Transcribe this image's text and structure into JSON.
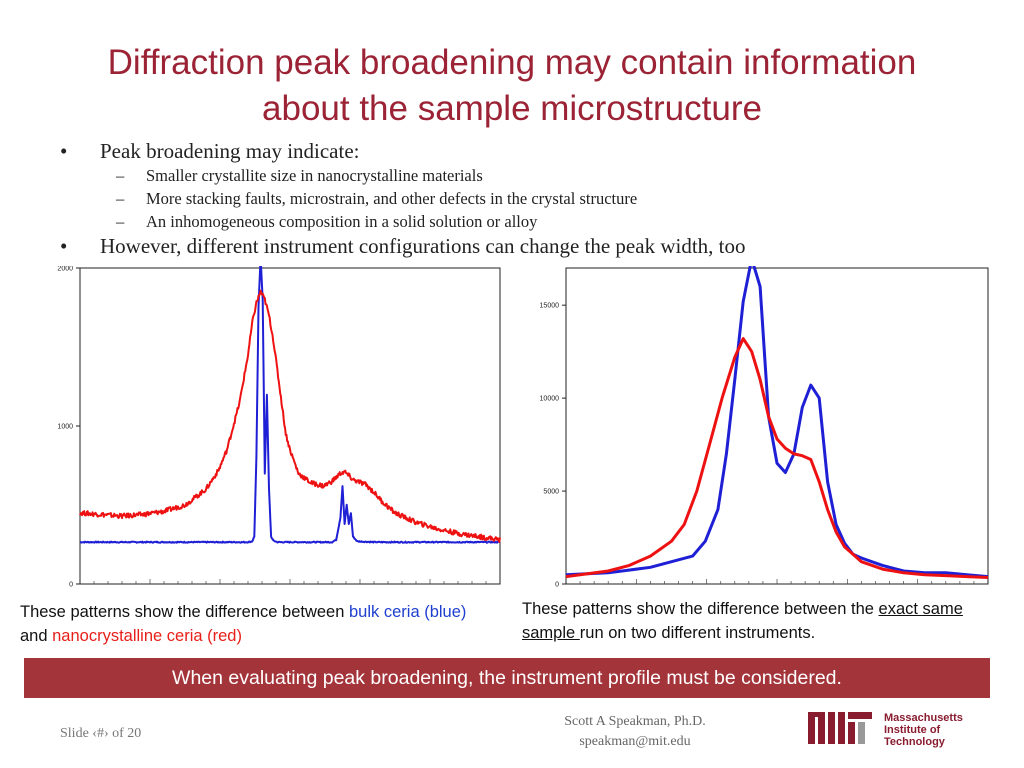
{
  "slide": {
    "title_line1": "Diffraction peak broadening may contain information",
    "title_line2": "about the sample microstructure",
    "bullets": [
      {
        "text": "Peak broadening may indicate:",
        "sub": [
          "Smaller crystallite size in nanocrystalline materials",
          "More stacking faults, microstrain, and other defects in the crystal structure",
          "An inhomogeneous composition in a solid solution or alloy"
        ]
      },
      {
        "text": "However, different instrument configurations can change the peak width, too"
      }
    ],
    "bullet_symbol": "•",
    "dash_symbol": "–",
    "caption_left": {
      "pre": "These patterns show the difference between ",
      "blue": "bulk ceria (blue)",
      "mid": " and ",
      "red": "nanocrystalline ceria (red)"
    },
    "caption_right": {
      "pre": "These patterns show the difference between the ",
      "underline": "exact same sample ",
      "post": "run on two different instruments."
    },
    "banner": "When evaluating peak broadening, the instrument profile must be considered.",
    "footer": {
      "slide_number": "Slide ‹#› of 20",
      "author_name": "Scott A Speakman, Ph.D.",
      "author_email": "speakman@mit.edu"
    },
    "logo": {
      "line1": "Massachusetts",
      "line2": "Institute of",
      "line3": "Technology",
      "mark": "MIT"
    }
  },
  "colors": {
    "title": "#9b2335",
    "banner": "#a3343a",
    "blue": "#1f1fd6",
    "red": "#ee1111"
  },
  "chart_data": [
    {
      "type": "line",
      "title": "",
      "xlabel": "",
      "ylabel": "",
      "ylim": [
        0,
        2000
      ],
      "yticks": [
        0,
        1000,
        2000
      ],
      "ytick_labels": [
        "0",
        "1000",
        "2000"
      ],
      "grid": false,
      "x_range": [
        0,
        100
      ],
      "series": [
        {
          "color": "#1f1fd6",
          "x": [
            0,
            40,
            41,
            41.5,
            42,
            42.5,
            43,
            43.5,
            44,
            44.5,
            45,
            45.5,
            46,
            47,
            48,
            50,
            60,
            61,
            62,
            62.5,
            63,
            63.5,
            64,
            64.5,
            65,
            66,
            70,
            80,
            90,
            100
          ],
          "y": [
            265,
            265,
            270,
            300,
            800,
            1750,
            2070,
            1800,
            700,
            1200,
            600,
            300,
            275,
            265,
            265,
            265,
            265,
            280,
            420,
            620,
            380,
            500,
            380,
            450,
            300,
            270,
            265,
            265,
            265,
            265
          ]
        },
        {
          "color": "#ee1111",
          "x": [
            0,
            5,
            10,
            15,
            20,
            25,
            30,
            33,
            35,
            38,
            40,
            41,
            42,
            43,
            44,
            45,
            46,
            47,
            48,
            49,
            50,
            52,
            55,
            58,
            60,
            62,
            63,
            65,
            68,
            70,
            72,
            75,
            80,
            85,
            90,
            95,
            100
          ],
          "y": [
            450,
            440,
            430,
            440,
            460,
            500,
            600,
            720,
            850,
            1150,
            1450,
            1650,
            1780,
            1850,
            1800,
            1700,
            1550,
            1350,
            1150,
            950,
            850,
            700,
            640,
            620,
            650,
            700,
            710,
            660,
            630,
            580,
            520,
            450,
            390,
            350,
            320,
            300,
            280
          ]
        }
      ]
    },
    {
      "type": "line",
      "title": "",
      "xlabel": "",
      "ylabel": "",
      "ylim": [
        0,
        17000
      ],
      "yticks": [
        0,
        5000,
        10000,
        15000
      ],
      "ytick_labels": [
        "0",
        "5000",
        "10000",
        "15000"
      ],
      "grid": false,
      "x_range": [
        0,
        100
      ],
      "series": [
        {
          "color": "#1f1fd6",
          "x": [
            0,
            10,
            20,
            25,
            30,
            33,
            36,
            38,
            40,
            42,
            44,
            46,
            48,
            50,
            52,
            54,
            56,
            58,
            60,
            62,
            64,
            66,
            68,
            70,
            75,
            80,
            85,
            90,
            95,
            100
          ],
          "y": [
            500,
            600,
            900,
            1200,
            1500,
            2300,
            4000,
            7000,
            11000,
            15200,
            17500,
            16000,
            9000,
            6500,
            6000,
            7000,
            9500,
            10700,
            10000,
            5500,
            3200,
            2200,
            1600,
            1400,
            1000,
            700,
            600,
            600,
            500,
            400
          ]
        },
        {
          "color": "#ee1111",
          "x": [
            0,
            10,
            15,
            20,
            25,
            28,
            31,
            34,
            37,
            40,
            42,
            44,
            46,
            48,
            50,
            52,
            54,
            56,
            58,
            60,
            62,
            64,
            66,
            68,
            70,
            75,
            80,
            85,
            90,
            95,
            100
          ],
          "y": [
            400,
            700,
            1000,
            1500,
            2300,
            3200,
            5000,
            7500,
            10000,
            12200,
            13200,
            12500,
            11000,
            9000,
            7800,
            7300,
            7000,
            6900,
            6700,
            5500,
            4000,
            2800,
            2000,
            1600,
            1200,
            800,
            600,
            500,
            450,
            400,
            350
          ]
        }
      ]
    }
  ]
}
